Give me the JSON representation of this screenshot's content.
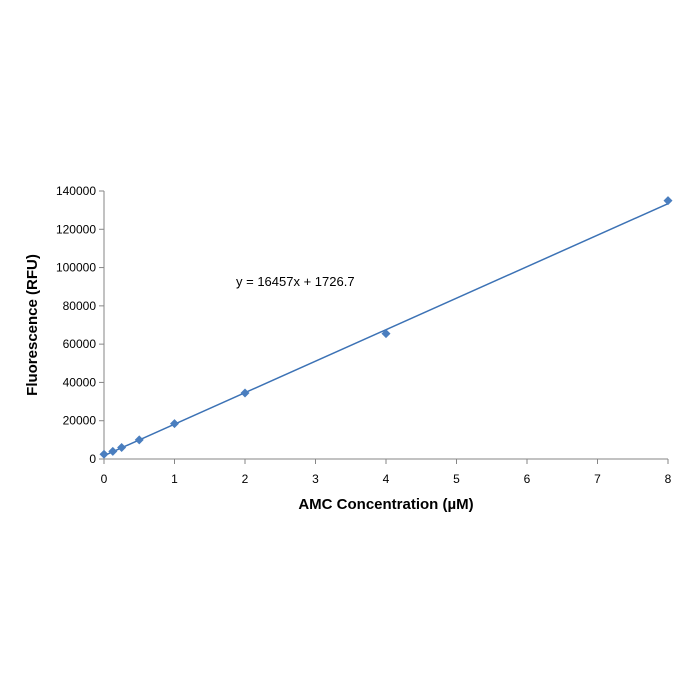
{
  "chart_data": {
    "type": "scatter",
    "title": "",
    "xlabel": "AMC Concentration (µM)",
    "ylabel": "Fluorescence (RFU)",
    "xlim": [
      0,
      8
    ],
    "ylim": [
      0,
      140000
    ],
    "xticks": [
      "0",
      "1",
      "2",
      "3",
      "4",
      "5",
      "6",
      "7",
      "8"
    ],
    "yticks": [
      "0",
      "20000",
      "40000",
      "60000",
      "80000",
      "100000",
      "120000",
      "140000"
    ],
    "grid": false,
    "series": [
      {
        "marker": "diamond",
        "color": "#4a7ebf",
        "x": [
          0,
          0.125,
          0.25,
          0.5,
          1,
          2,
          4,
          8
        ],
        "y": [
          2500,
          4000,
          6000,
          10000,
          18500,
          34500,
          65500,
          135000
        ]
      }
    ],
    "trendline": {
      "slope": 16457,
      "intercept": 1726.7,
      "color": "#3c72b5",
      "equation": "y = 16457x + 1726.7"
    }
  }
}
